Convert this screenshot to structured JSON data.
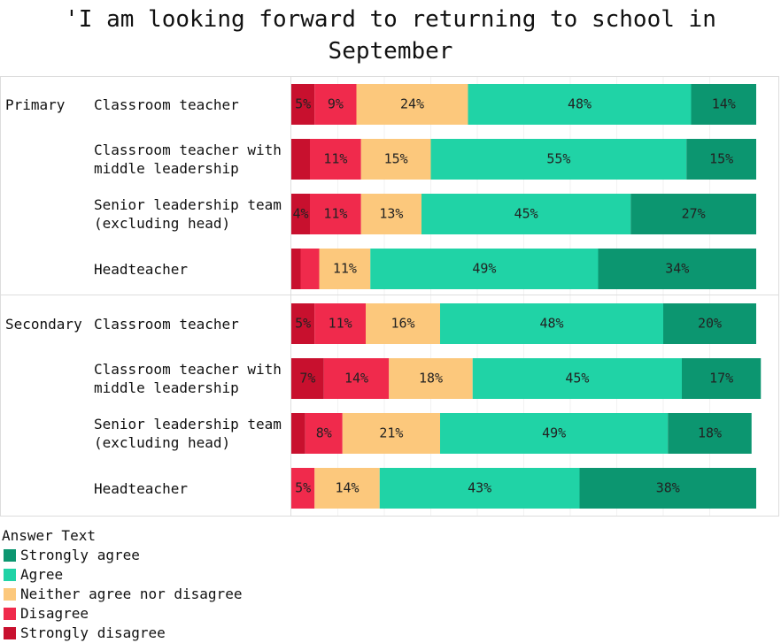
{
  "chart_data": {
    "type": "stacked-bar-horizontal",
    "title": "'I am looking forward to returning to school in September",
    "group_labels": [
      "Primary",
      null,
      null,
      null,
      "Secondary",
      null,
      null,
      null
    ],
    "categories": [
      "Classroom teacher",
      "Classroom teacher with\nmiddle leadership",
      "Senior leadership team\n(excluding head)",
      "Headteacher",
      "Classroom teacher",
      "Classroom teacher with\nmiddle leadership",
      "Senior leadership team\n(excluding head)",
      "Headteacher"
    ],
    "xlim": [
      0,
      100
    ],
    "legend_title": "Answer Text",
    "series": [
      {
        "name": "Strongly disagree",
        "color": "#c8102e",
        "values": [
          5,
          4,
          4,
          2,
          5,
          7,
          3,
          0
        ],
        "value_labels": [
          "5%",
          null,
          "4%",
          null,
          "5%",
          "7%",
          null,
          null
        ]
      },
      {
        "name": "Disagree",
        "color": "#f02a4c",
        "values": [
          9,
          11,
          11,
          4,
          11,
          14,
          8,
          5
        ],
        "value_labels": [
          "9%",
          "11%",
          "11%",
          null,
          "11%",
          "14%",
          "8%",
          "5%"
        ]
      },
      {
        "name": "Neither agree nor disagree",
        "color": "#fcc87c",
        "values": [
          24,
          15,
          13,
          11,
          16,
          18,
          21,
          14
        ],
        "value_labels": [
          "24%",
          "15%",
          "13%",
          "11%",
          "16%",
          "18%",
          "21%",
          "14%"
        ]
      },
      {
        "name": "Agree",
        "color": "#20d3a6",
        "values": [
          48,
          55,
          45,
          49,
          48,
          45,
          49,
          43
        ],
        "value_labels": [
          "48%",
          "55%",
          "45%",
          "49%",
          "48%",
          "45%",
          "49%",
          "43%"
        ]
      },
      {
        "name": "Strongly agree",
        "color": "#0c9670",
        "values": [
          14,
          15,
          27,
          34,
          20,
          17,
          18,
          38
        ],
        "value_labels": [
          "14%",
          "15%",
          "27%",
          "34%",
          "20%",
          "17%",
          "18%",
          "38%"
        ]
      }
    ]
  }
}
